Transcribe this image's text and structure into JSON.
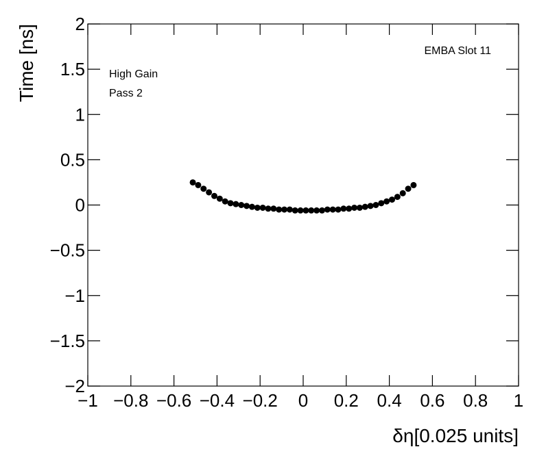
{
  "chart_data": {
    "type": "scatter",
    "x_label": "δη[0.025 units]",
    "y_label": "Time [ns]",
    "annotations": [
      "EMBA Slot 11",
      "High Gain",
      "Pass 2"
    ],
    "color": "#000000",
    "x": [
      -0.5125,
      -0.4875,
      -0.4625,
      -0.4375,
      -0.4125,
      -0.3875,
      -0.3625,
      -0.3375,
      -0.3125,
      -0.2875,
      -0.2625,
      -0.2375,
      -0.2125,
      -0.1875,
      -0.1625,
      -0.1375,
      -0.1125,
      -0.0875,
      -0.0625,
      -0.0375,
      -0.0125,
      0.0125,
      0.0375,
      0.0625,
      0.0875,
      0.1125,
      0.1375,
      0.1625,
      0.1875,
      0.2125,
      0.2375,
      0.2625,
      0.2875,
      0.3125,
      0.3375,
      0.3625,
      0.3875,
      0.4125,
      0.4375,
      0.4625,
      0.4875,
      0.5125
    ],
    "values": [
      0.25,
      0.22,
      0.18,
      0.14,
      0.1,
      0.07,
      0.04,
      0.02,
      0.01,
      0.0,
      -0.01,
      -0.02,
      -0.03,
      -0.03,
      -0.04,
      -0.04,
      -0.05,
      -0.05,
      -0.05,
      -0.06,
      -0.06,
      -0.06,
      -0.06,
      -0.06,
      -0.06,
      -0.05,
      -0.05,
      -0.05,
      -0.04,
      -0.04,
      -0.03,
      -0.03,
      -0.02,
      -0.01,
      0.0,
      0.02,
      0.04,
      0.06,
      0.09,
      0.13,
      0.18,
      0.22
    ],
    "xlim": [
      -1,
      1
    ],
    "ylim": [
      -2,
      2
    ],
    "xticks": [
      {
        "value": -1,
        "label": "−1"
      },
      {
        "value": -0.8,
        "label": "−0.8"
      },
      {
        "value": -0.6,
        "label": "−0.6"
      },
      {
        "value": -0.4,
        "label": "−0.4"
      },
      {
        "value": -0.2,
        "label": "−0.2"
      },
      0,
      0.2,
      0.4,
      0.6,
      0.8,
      1
    ],
    "yticks": [
      {
        "value": -2,
        "label": "−2"
      },
      {
        "value": -1.5,
        "label": "−1.5"
      },
      {
        "value": -1,
        "label": "−1"
      },
      {
        "value": -0.5,
        "label": "−0.5"
      },
      0,
      0.5,
      1,
      1.5,
      2
    ]
  }
}
